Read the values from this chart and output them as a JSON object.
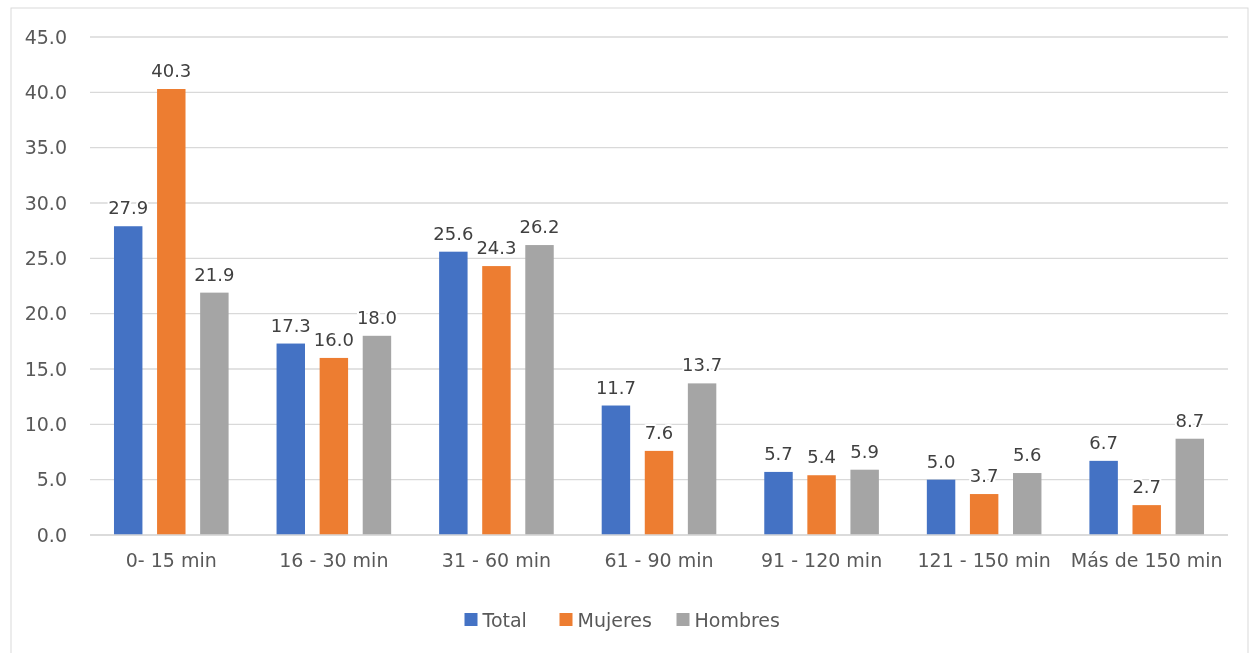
{
  "chart_data": {
    "type": "bar",
    "categories": [
      "0- 15 min",
      "16 - 30 min",
      "31 - 60 min",
      "61 - 90 min",
      "91 - 120 min",
      "121 - 150 min",
      "Más de 150 min"
    ],
    "series": [
      {
        "name": "Total",
        "color": "#4472c4",
        "values": [
          27.9,
          17.3,
          25.6,
          11.7,
          5.7,
          5.0,
          6.7
        ],
        "value_labels": [
          "27.9",
          "17.3",
          "25.6",
          "11.7",
          "5.7",
          "5.0",
          "6.7"
        ]
      },
      {
        "name": "Mujeres",
        "color": "#ed7d31",
        "values": [
          40.3,
          16.0,
          24.3,
          7.6,
          5.4,
          3.7,
          2.7
        ],
        "value_labels": [
          "40.3",
          "16.0",
          "24.3",
          "7.6",
          "5.4",
          "3.7",
          "2.7"
        ]
      },
      {
        "name": "Hombres",
        "color": "#a5a5a5",
        "values": [
          21.9,
          18.0,
          26.2,
          13.7,
          5.9,
          5.6,
          8.7
        ],
        "value_labels": [
          "21.9",
          "18.0",
          "26.2",
          "13.7",
          "5.9",
          "5.6",
          "8.7"
        ]
      }
    ],
    "ylim": [
      0,
      45
    ],
    "yticks": [
      {
        "value": 0,
        "label": "0.0"
      },
      {
        "value": 5,
        "label": "5.0"
      },
      {
        "value": 10,
        "label": "10.0"
      },
      {
        "value": 15,
        "label": "15.0"
      },
      {
        "value": 20,
        "label": "20.0"
      },
      {
        "value": 25,
        "label": "25.0"
      },
      {
        "value": 30,
        "label": "30.0"
      },
      {
        "value": 35,
        "label": "35.0"
      },
      {
        "value": 40,
        "label": "40.0"
      },
      {
        "value": 45,
        "label": "45.0"
      }
    ],
    "grid": "y",
    "legend": "bottom"
  }
}
